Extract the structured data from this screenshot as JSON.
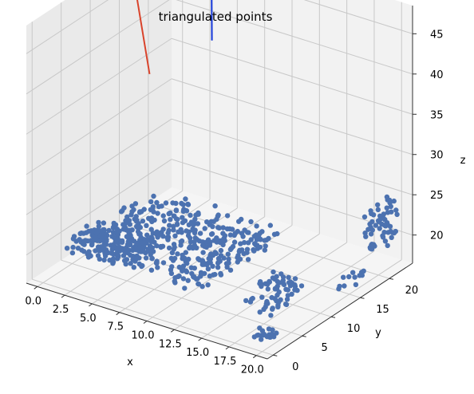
{
  "chart_data": {
    "type": "scatter",
    "projection": "3d",
    "title": "triangulated points",
    "xlabel": "x",
    "ylabel": "y",
    "zlabel": "z",
    "x_ticks": [
      "0.0",
      "2.5",
      "5.0",
      "7.5",
      "10.0",
      "12.5",
      "15.0",
      "17.5",
      "20.0"
    ],
    "y_ticks": [
      "0",
      "5",
      "10",
      "15",
      "20"
    ],
    "z_ticks": [
      "20",
      "25",
      "30",
      "35",
      "40",
      "45"
    ],
    "xlim": [
      -1,
      21
    ],
    "ylim": [
      -1,
      24
    ],
    "zlim": [
      16.5,
      48.5
    ],
    "grid": true,
    "colors": {
      "points": "#4c72b0",
      "camera1": "#d9432b",
      "camera2": "#1437d9",
      "pane_back": "#f2f2f2",
      "pane_side": "#eaeaea",
      "pane_floor": "#f5f5f5"
    },
    "series": [
      {
        "kind": "scatter",
        "description_clusters": [
          {
            "x": [
              1.0,
              13.0
            ],
            "y": [
              3.0,
              17.0
            ],
            "z": [
              19.0,
              21.0
            ],
            "count": 420
          },
          {
            "x": [
              0.0,
              6.0
            ],
            "y": [
              4.0,
              9.0
            ],
            "z": [
              18.5,
              20.5
            ],
            "count": 140
          },
          {
            "x": [
              14.0,
              17.0
            ],
            "y": [
              10.0,
              13.0
            ],
            "z": [
              17.0,
              18.0
            ],
            "count": 40
          },
          {
            "x": [
              15.0,
              18.0
            ],
            "y": [
              6.0,
              9.0
            ],
            "z": [
              17.0,
              18.0
            ],
            "count": 25
          },
          {
            "x": [
              18.5,
              20.0
            ],
            "y": [
              1.0,
              3.0
            ],
            "z": [
              17.0,
              18.0
            ],
            "count": 20
          },
          {
            "x": [
              19.5,
              20.5
            ],
            "y": [
              18.0,
              23.0
            ],
            "z": [
              20.0,
              25.0
            ],
            "count": 60
          },
          {
            "x": [
              19.5,
              20.5
            ],
            "y": [
              14.0,
              17.0
            ],
            "z": [
              17.0,
              19.0
            ],
            "count": 12
          }
        ]
      },
      {
        "kind": "line",
        "color": "camera1",
        "points": [
          {
            "x": -0.5,
            "y": 17.0,
            "z": 44.0
          },
          {
            "x": 0.6,
            "y": 17.2,
            "z": 34.5
          }
        ],
        "marker_at": 0
      },
      {
        "kind": "line",
        "color": "camera2",
        "points": [
          {
            "x": 4.5,
            "y": 20.5,
            "z": 48.0
          },
          {
            "x": 4.7,
            "y": 20.2,
            "z": 39.0
          }
        ],
        "marker_at": 0
      }
    ]
  }
}
